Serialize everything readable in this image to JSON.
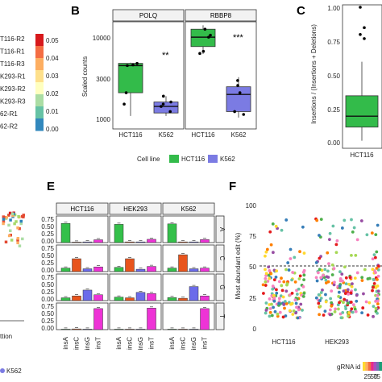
{
  "panels": {
    "a_partial": {
      "row_labels": [
        "T116-R2",
        "T116-R1",
        "T116-R3",
        "K293-R1",
        "K293-R2",
        "K293-R3",
        "62-R1",
        "62-R2"
      ],
      "colorbar_ticks": [
        "0.05",
        "0.04",
        "0.03",
        "0.02",
        "0.01",
        "0.00"
      ]
    },
    "b": {
      "letter": "B",
      "strips": [
        "POLQ",
        "RBBP8"
      ],
      "ylabel": "Scaled counts",
      "yticks": [
        "10000",
        "3000",
        "1000"
      ],
      "xticks_left": [
        "HCT116",
        "K562"
      ],
      "xticks_right": [
        "HCT116",
        "K562"
      ],
      "sig_left": "**",
      "sig_right": "***",
      "legend_title": "Cell line",
      "legend_items": [
        "HCT116",
        "K562"
      ]
    },
    "c": {
      "letter": "C",
      "ylabel": "Insertions / (Insertions + Deletions)",
      "yticks": [
        "1.00",
        "0.75",
        "0.50",
        "0.25",
        "0.00"
      ],
      "xtick": "HCT116"
    },
    "d_partial": {
      "xlabel_fragment": "ttion",
      "legend_fragment": "K562"
    },
    "e": {
      "letter": "E",
      "strips": [
        "HCT116",
        "HEK293",
        "K562"
      ],
      "row_strips": [
        "A",
        "C",
        "G",
        "T"
      ],
      "yticks": [
        "0.75",
        "0.50",
        "0.25",
        "0.00"
      ],
      "xticks": [
        "insA",
        "insC",
        "insG",
        "insT"
      ]
    },
    "f": {
      "letter": "F",
      "ylabel": "Most abundant edit (%)",
      "yticks": [
        "100",
        "75",
        "50",
        "25",
        "0"
      ],
      "xticks": [
        "HCT116",
        "HEK293"
      ],
      "legend_title": "gRNA id",
      "legend_ticks": [
        "25",
        "50",
        "75"
      ]
    }
  },
  "colors": {
    "hct116": "#33bb4a",
    "k562": "#7b7be3",
    "insA": "#34c04a",
    "insC": "#e8541c",
    "insG": "#6b6bea",
    "insT": "#ee33d6"
  },
  "chart_data": [
    {
      "type": "box",
      "panel": "B",
      "strips": [
        "POLQ",
        "RBBP8"
      ],
      "ylabel": "Scaled counts",
      "y_scale": "log",
      "ylim": [
        800,
        16000
      ],
      "series": [
        {
          "name": "HCT116",
          "facet": "POLQ",
          "q1": 2200,
          "median": 4700,
          "q3": 5000,
          "whisker_low": 1150,
          "whisker_high": 5100,
          "points": [
            4800,
            5000,
            4700,
            1600,
            2200
          ]
        },
        {
          "name": "K562",
          "facet": "POLQ",
          "q1": 1250,
          "median": 1500,
          "q3": 1700,
          "whisker_low": 1150,
          "whisker_high": 2000,
          "points": [
            1300,
            1500,
            1600,
            1700,
            2000
          ]
        },
        {
          "name": "HCT116",
          "facet": "RBBP8",
          "q1": 8000,
          "median": 10400,
          "q3": 13000,
          "whisker_low": 6500,
          "whisker_high": 14500,
          "points": [
            13000,
            10400,
            11000,
            7000,
            6600
          ]
        },
        {
          "name": "K562",
          "facet": "RBBP8",
          "q1": 1300,
          "median": 2100,
          "q3": 2600,
          "whisker_low": 1100,
          "whisker_high": 3400,
          "points": [
            2700,
            3100,
            2200,
            1300,
            1200
          ]
        }
      ]
    },
    {
      "type": "box",
      "panel": "C",
      "ylabel": "Insertions / (Insertions + Deletions)",
      "ylim": [
        0,
        1.05
      ],
      "series": [
        {
          "name": "HCT116",
          "q1": 0.12,
          "median": 0.2,
          "q3": 0.35,
          "whisker_low": 0.02,
          "whisker_high": 0.6,
          "outliers": [
            1.0,
            0.85,
            0.8,
            0.77
          ]
        }
      ]
    },
    {
      "type": "bar",
      "panel": "E",
      "categories": [
        "insA",
        "insC",
        "insG",
        "insT"
      ],
      "facets_cols": [
        "HCT116",
        "HEK293",
        "K562"
      ],
      "facets_rows": [
        "A",
        "C",
        "G",
        "T"
      ],
      "ylim": [
        0,
        1
      ],
      "values": [
        [
          [
            0.82,
            0.02,
            0.03,
            0.12
          ],
          [
            0.78,
            0.03,
            0.03,
            0.14
          ],
          [
            0.8,
            0.03,
            0.03,
            0.13
          ]
        ],
        [
          [
            0.15,
            0.55,
            0.12,
            0.2
          ],
          [
            0.18,
            0.55,
            0.1,
            0.22
          ],
          [
            0.15,
            0.72,
            0.12,
            0.15
          ]
        ],
        [
          [
            0.12,
            0.2,
            0.45,
            0.25
          ],
          [
            0.15,
            0.12,
            0.35,
            0.3
          ],
          [
            0.13,
            0.1,
            0.6,
            0.2
          ]
        ],
        [
          [
            0.02,
            0.03,
            0.02,
            0.9
          ],
          [
            0.02,
            0.02,
            0.02,
            0.92
          ],
          [
            0.02,
            0.02,
            0.02,
            0.9
          ]
        ]
      ]
    },
    {
      "type": "scatter",
      "panel": "F",
      "ylabel": "Most abundant edit (%)",
      "categories": [
        "HCT116",
        "HEK293"
      ],
      "ylim": [
        0,
        100
      ],
      "reference_line": 50
    }
  ]
}
